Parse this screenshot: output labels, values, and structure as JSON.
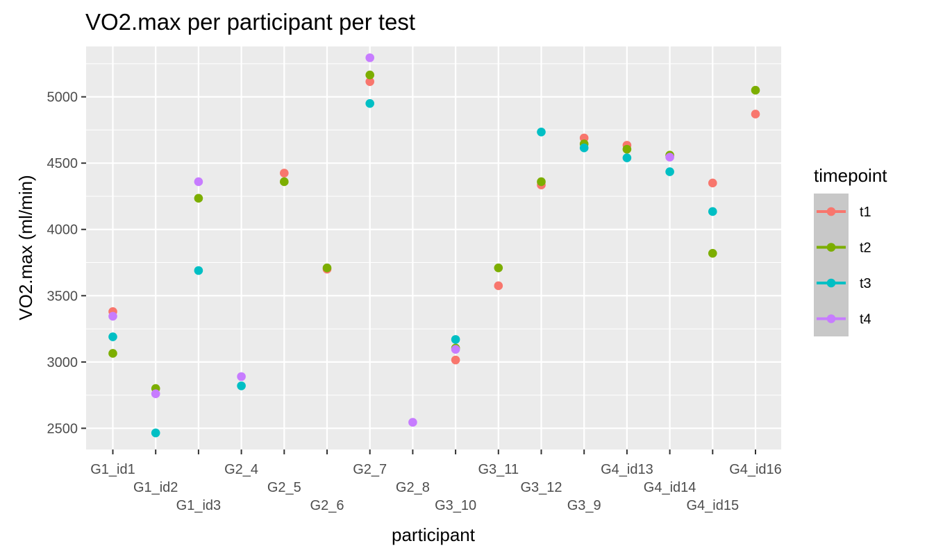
{
  "chart_data": {
    "type": "scatter",
    "title": "VO2.max per participant per test",
    "xlabel": "participant",
    "ylabel": "VO2.max (ml/min)",
    "categories": [
      "G1_id1",
      "G1_id2",
      "G1_id3",
      "G2_4",
      "G2_5",
      "G2_6",
      "G2_7",
      "G2_8",
      "G3_10",
      "G3_11",
      "G3_12",
      "G3_9",
      "G4_id13",
      "G4_id14",
      "G4_id15",
      "G4_id16"
    ],
    "ylim": [
      2340,
      5380
    ],
    "yticks": [
      2500,
      3000,
      3500,
      4000,
      4500,
      5000
    ],
    "ytick_labels": [
      "2500",
      "3000",
      "3500",
      "4000",
      "4500",
      "5000"
    ],
    "grid": true,
    "legend": {
      "title": "timepoint",
      "position": "right"
    },
    "series": [
      {
        "name": "t1",
        "color": "#F8766D",
        "values": [
          3380,
          null,
          null,
          null,
          4425,
          3700,
          5115,
          null,
          3015,
          3575,
          4335,
          4690,
          4635,
          4555,
          4350,
          4870
        ]
      },
      {
        "name": "t2",
        "color": "#7CAE00",
        "values": [
          3065,
          2800,
          4235,
          null,
          4360,
          3710,
          5165,
          null,
          3105,
          3710,
          4360,
          4645,
          4605,
          4560,
          3820,
          5050
        ]
      },
      {
        "name": "t3",
        "color": "#00BFC4",
        "values": [
          3190,
          2465,
          3690,
          2820,
          null,
          null,
          4950,
          null,
          3170,
          null,
          4735,
          4615,
          4540,
          4435,
          4135,
          null
        ]
      },
      {
        "name": "t4",
        "color": "#C77CFF",
        "values": [
          3345,
          2760,
          4360,
          2890,
          null,
          null,
          5295,
          2545,
          3095,
          null,
          null,
          null,
          null,
          4545,
          null,
          null
        ]
      }
    ]
  }
}
